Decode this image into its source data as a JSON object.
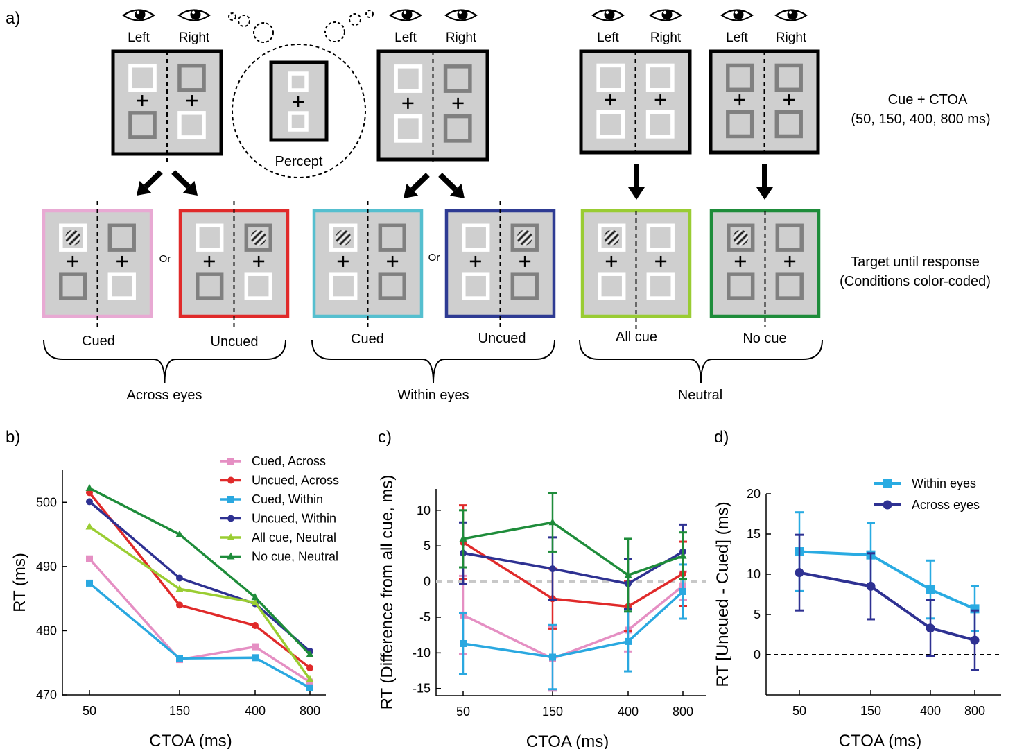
{
  "colors": {
    "cued_across": "#e58fc3",
    "uncued_across": "#e02a2a",
    "cued_within": "#2aa8e0",
    "uncued_within": "#2e3192",
    "all_cue_neutral": "#9acd32",
    "no_cue_neutral": "#1e8c3a",
    "frame_cued_across": "#e8a9d3",
    "frame_uncued_across": "#e02a2a",
    "frame_cued_within": "#55bfcf",
    "frame_uncued_within": "#2e3b93",
    "frame_all_cue": "#99cc33",
    "frame_no_cue": "#1e8c3a",
    "stim_bg": "#cfcfcf",
    "box_white": "#ffffff",
    "box_gray": "#808080",
    "within_eyes": "#29abe2",
    "across_eyes": "#2e3192"
  },
  "panel_a": {
    "label": "a)",
    "eye_left": "Left",
    "eye_right": "Right",
    "percept": "Percept",
    "cue_ctoa_line1": "Cue + CTOA",
    "cue_ctoa_line2": "(50, 150, 400, 800 ms)",
    "target_line1": "Target until response",
    "target_line2": "(Conditions color-coded)",
    "or": "Or",
    "cued": "Cued",
    "uncued": "Uncued",
    "all_cue": "All cue",
    "no_cue": "No cue",
    "across_eyes": "Across eyes",
    "within_eyes": "Within eyes",
    "neutral": "Neutral"
  },
  "chart_data": [
    {
      "panel_label": "b)",
      "type": "line",
      "x_categories": [
        "50",
        "150",
        "400",
        "800"
      ],
      "xlabel": "CTOA (ms)",
      "ylabel": "RT (ms)",
      "ylim": [
        470,
        505
      ],
      "yticks": [
        "470",
        "480",
        "490",
        "500"
      ],
      "legend_position": "top-right",
      "series": [
        {
          "name": "Cued, Across",
          "marker": "square",
          "values": [
            491.2,
            475.5,
            477.5,
            472.0
          ]
        },
        {
          "name": "Uncued, Across",
          "marker": "circle",
          "values": [
            501.5,
            484.0,
            480.8,
            474.2
          ]
        },
        {
          "name": "Cued, Within",
          "marker": "square",
          "values": [
            487.4,
            475.7,
            475.8,
            471.1
          ]
        },
        {
          "name": "Uncued, Within",
          "marker": "circle",
          "values": [
            500.1,
            488.2,
            484.2,
            476.8
          ]
        },
        {
          "name": "All cue, Neutral",
          "marker": "triangle",
          "values": [
            496.2,
            486.5,
            484.4,
            472.4
          ]
        },
        {
          "name": "No cue, Neutral",
          "marker": "triangle",
          "values": [
            502.2,
            495.0,
            485.2,
            476.3
          ]
        }
      ]
    },
    {
      "panel_label": "c)",
      "type": "line",
      "x_categories": [
        "50",
        "150",
        "400",
        "800"
      ],
      "xlabel": "CTOA (ms)",
      "ylabel": "RT (Difference from all cue, ms)",
      "ylim": [
        -16,
        13
      ],
      "yticks": [
        "-15",
        "-10",
        "-5",
        "0",
        "5",
        "10"
      ],
      "reference_line": 0,
      "series": [
        {
          "name": "Cued, Across",
          "marker": "square",
          "values": [
            -4.7,
            -10.8,
            -6.8,
            -0.6
          ],
          "errors": [
            5.5,
            4.5,
            3.0,
            2.0
          ]
        },
        {
          "name": "Uncued, Across",
          "marker": "circle",
          "values": [
            5.5,
            -2.4,
            -3.5,
            1.1
          ],
          "errors": [
            5.2,
            4.2,
            3.5,
            4.5
          ]
        },
        {
          "name": "Cued, Within",
          "marker": "square",
          "values": [
            -8.7,
            -10.6,
            -8.4,
            -1.4
          ],
          "errors": [
            4.3,
            4.5,
            4.2,
            3.8
          ]
        },
        {
          "name": "Uncued, Within",
          "marker": "circle",
          "values": [
            4.0,
            1.8,
            -0.3,
            4.2
          ],
          "errors": [
            4.3,
            4.4,
            3.5,
            3.8
          ]
        },
        {
          "name": "No cue, Neutral",
          "marker": "triangle",
          "values": [
            6.0,
            8.3,
            0.9,
            3.6
          ],
          "errors": [
            4.0,
            4.1,
            5.1,
            3.3
          ]
        }
      ]
    },
    {
      "panel_label": "d)",
      "type": "line",
      "x_categories": [
        "50",
        "150",
        "400",
        "800"
      ],
      "xlabel": "CTOA (ms)",
      "ylabel": "RT [Uncued - Cued] (ms)",
      "ylim": [
        -5,
        20
      ],
      "yticks": [
        "0",
        "5",
        "10",
        "15",
        "20"
      ],
      "reference_line": 0,
      "legend_position": "top-right",
      "series": [
        {
          "name": "Within eyes",
          "marker": "square",
          "values": [
            12.8,
            12.4,
            8.1,
            5.7
          ],
          "errors": [
            4.9,
            4.0,
            3.6,
            2.8
          ]
        },
        {
          "name": "Across eyes",
          "marker": "circle",
          "values": [
            10.2,
            8.5,
            3.3,
            1.8
          ],
          "errors": [
            4.7,
            4.1,
            3.5,
            3.7
          ]
        }
      ]
    }
  ]
}
